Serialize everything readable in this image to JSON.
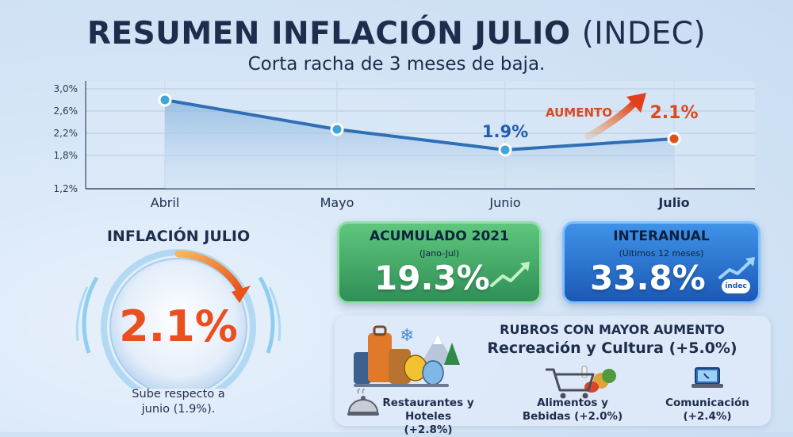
{
  "header": {
    "title_main": "RESUMEN INFLACIÓN JULIO",
    "title_suffix": "(INDEC)",
    "subtitle": "Corta racha de 3 meses de baja."
  },
  "chart_data": {
    "type": "line",
    "categories": [
      "Abril",
      "Mayo",
      "Junio",
      "Julio"
    ],
    "values": [
      2.8,
      2.27,
      1.9,
      2.1
    ],
    "ylim": [
      1.2,
      3.0
    ],
    "yticks": [
      "1,2%",
      "1,8%",
      "2,2%",
      "2,6%",
      "3,0%"
    ],
    "ytick_values": [
      1.2,
      1.8,
      2.2,
      2.6,
      3.0
    ],
    "grid": true,
    "highlight_category": "Julio",
    "annotations": [
      {
        "category": "Junio",
        "text": "1.9%",
        "color": "#1f5fb0"
      },
      {
        "category": "Julio",
        "text": "2.1%",
        "color": "#d94a1e"
      },
      {
        "category": "Julio",
        "text": "AUMENTO",
        "color": "#d94a1e"
      }
    ],
    "colors": {
      "line": "#2f6fb5",
      "point": "#3fa6d9",
      "highlight": "#e0501f",
      "area": "#9fc3e3"
    }
  },
  "gauge": {
    "title": "INFLACIÓN JULIO",
    "value": "2.1%",
    "note_line1": "Sube respecto a",
    "note_line2": "junio (1.9%)."
  },
  "cards": {
    "acumulado": {
      "title": "ACUMULADO 2021",
      "subtitle": "(Jano-Jul)",
      "value": "19.3%"
    },
    "interanual": {
      "title": "INTERANUAL",
      "subtitle": "(Últimos 12 meses)",
      "value": "33.8%",
      "logo": "indec"
    }
  },
  "rubros": {
    "heading": "RUBROS CON MAYOR AUMENTO",
    "main": "Recreación y Cultura (+5.0%)",
    "items": [
      {
        "line1": "Restaurantes y",
        "line2": "Hoteles (+2.8%)",
        "icon": "cloche-icon"
      },
      {
        "line1": "Alimentos y",
        "line2": "Bebidas (+2.0%)",
        "icon": "shopping-cart-icon"
      },
      {
        "line1": "Comunicación",
        "line2": "(+2.4%)",
        "icon": "laptop-phone-icon"
      }
    ]
  }
}
